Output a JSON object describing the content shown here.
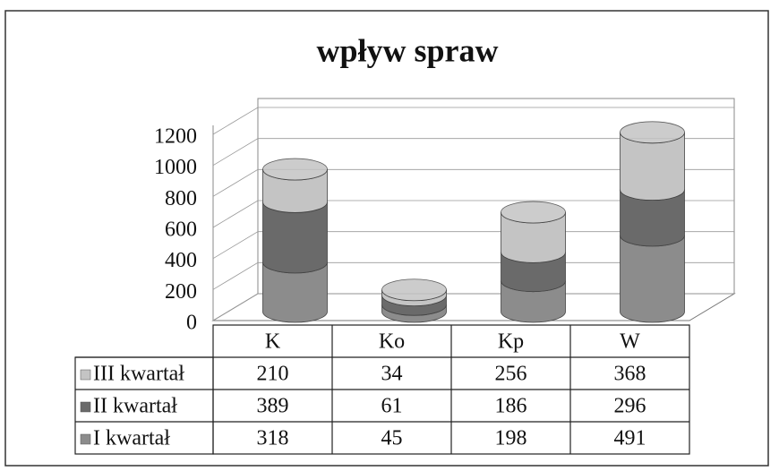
{
  "chart_data": {
    "type": "bar",
    "stacked": true,
    "style": "3d-cylinder",
    "title": "wpływ spraw",
    "categories": [
      "K",
      "Ko",
      "Kp",
      "W"
    ],
    "series": [
      {
        "name": "I kwartał",
        "color": "#8c8c8c",
        "values": [
          318,
          45,
          198,
          491
        ]
      },
      {
        "name": "II kwartał",
        "color": "#6a6a6a",
        "values": [
          389,
          61,
          186,
          296
        ]
      },
      {
        "name": "III kwartał",
        "color": "#c4c4c4",
        "values": [
          210,
          34,
          256,
          368
        ]
      }
    ],
    "ylim": [
      0,
      1200
    ],
    "yticks": [
      0,
      200,
      400,
      600,
      800,
      1000,
      1200
    ],
    "grid": true,
    "data_table": true
  }
}
